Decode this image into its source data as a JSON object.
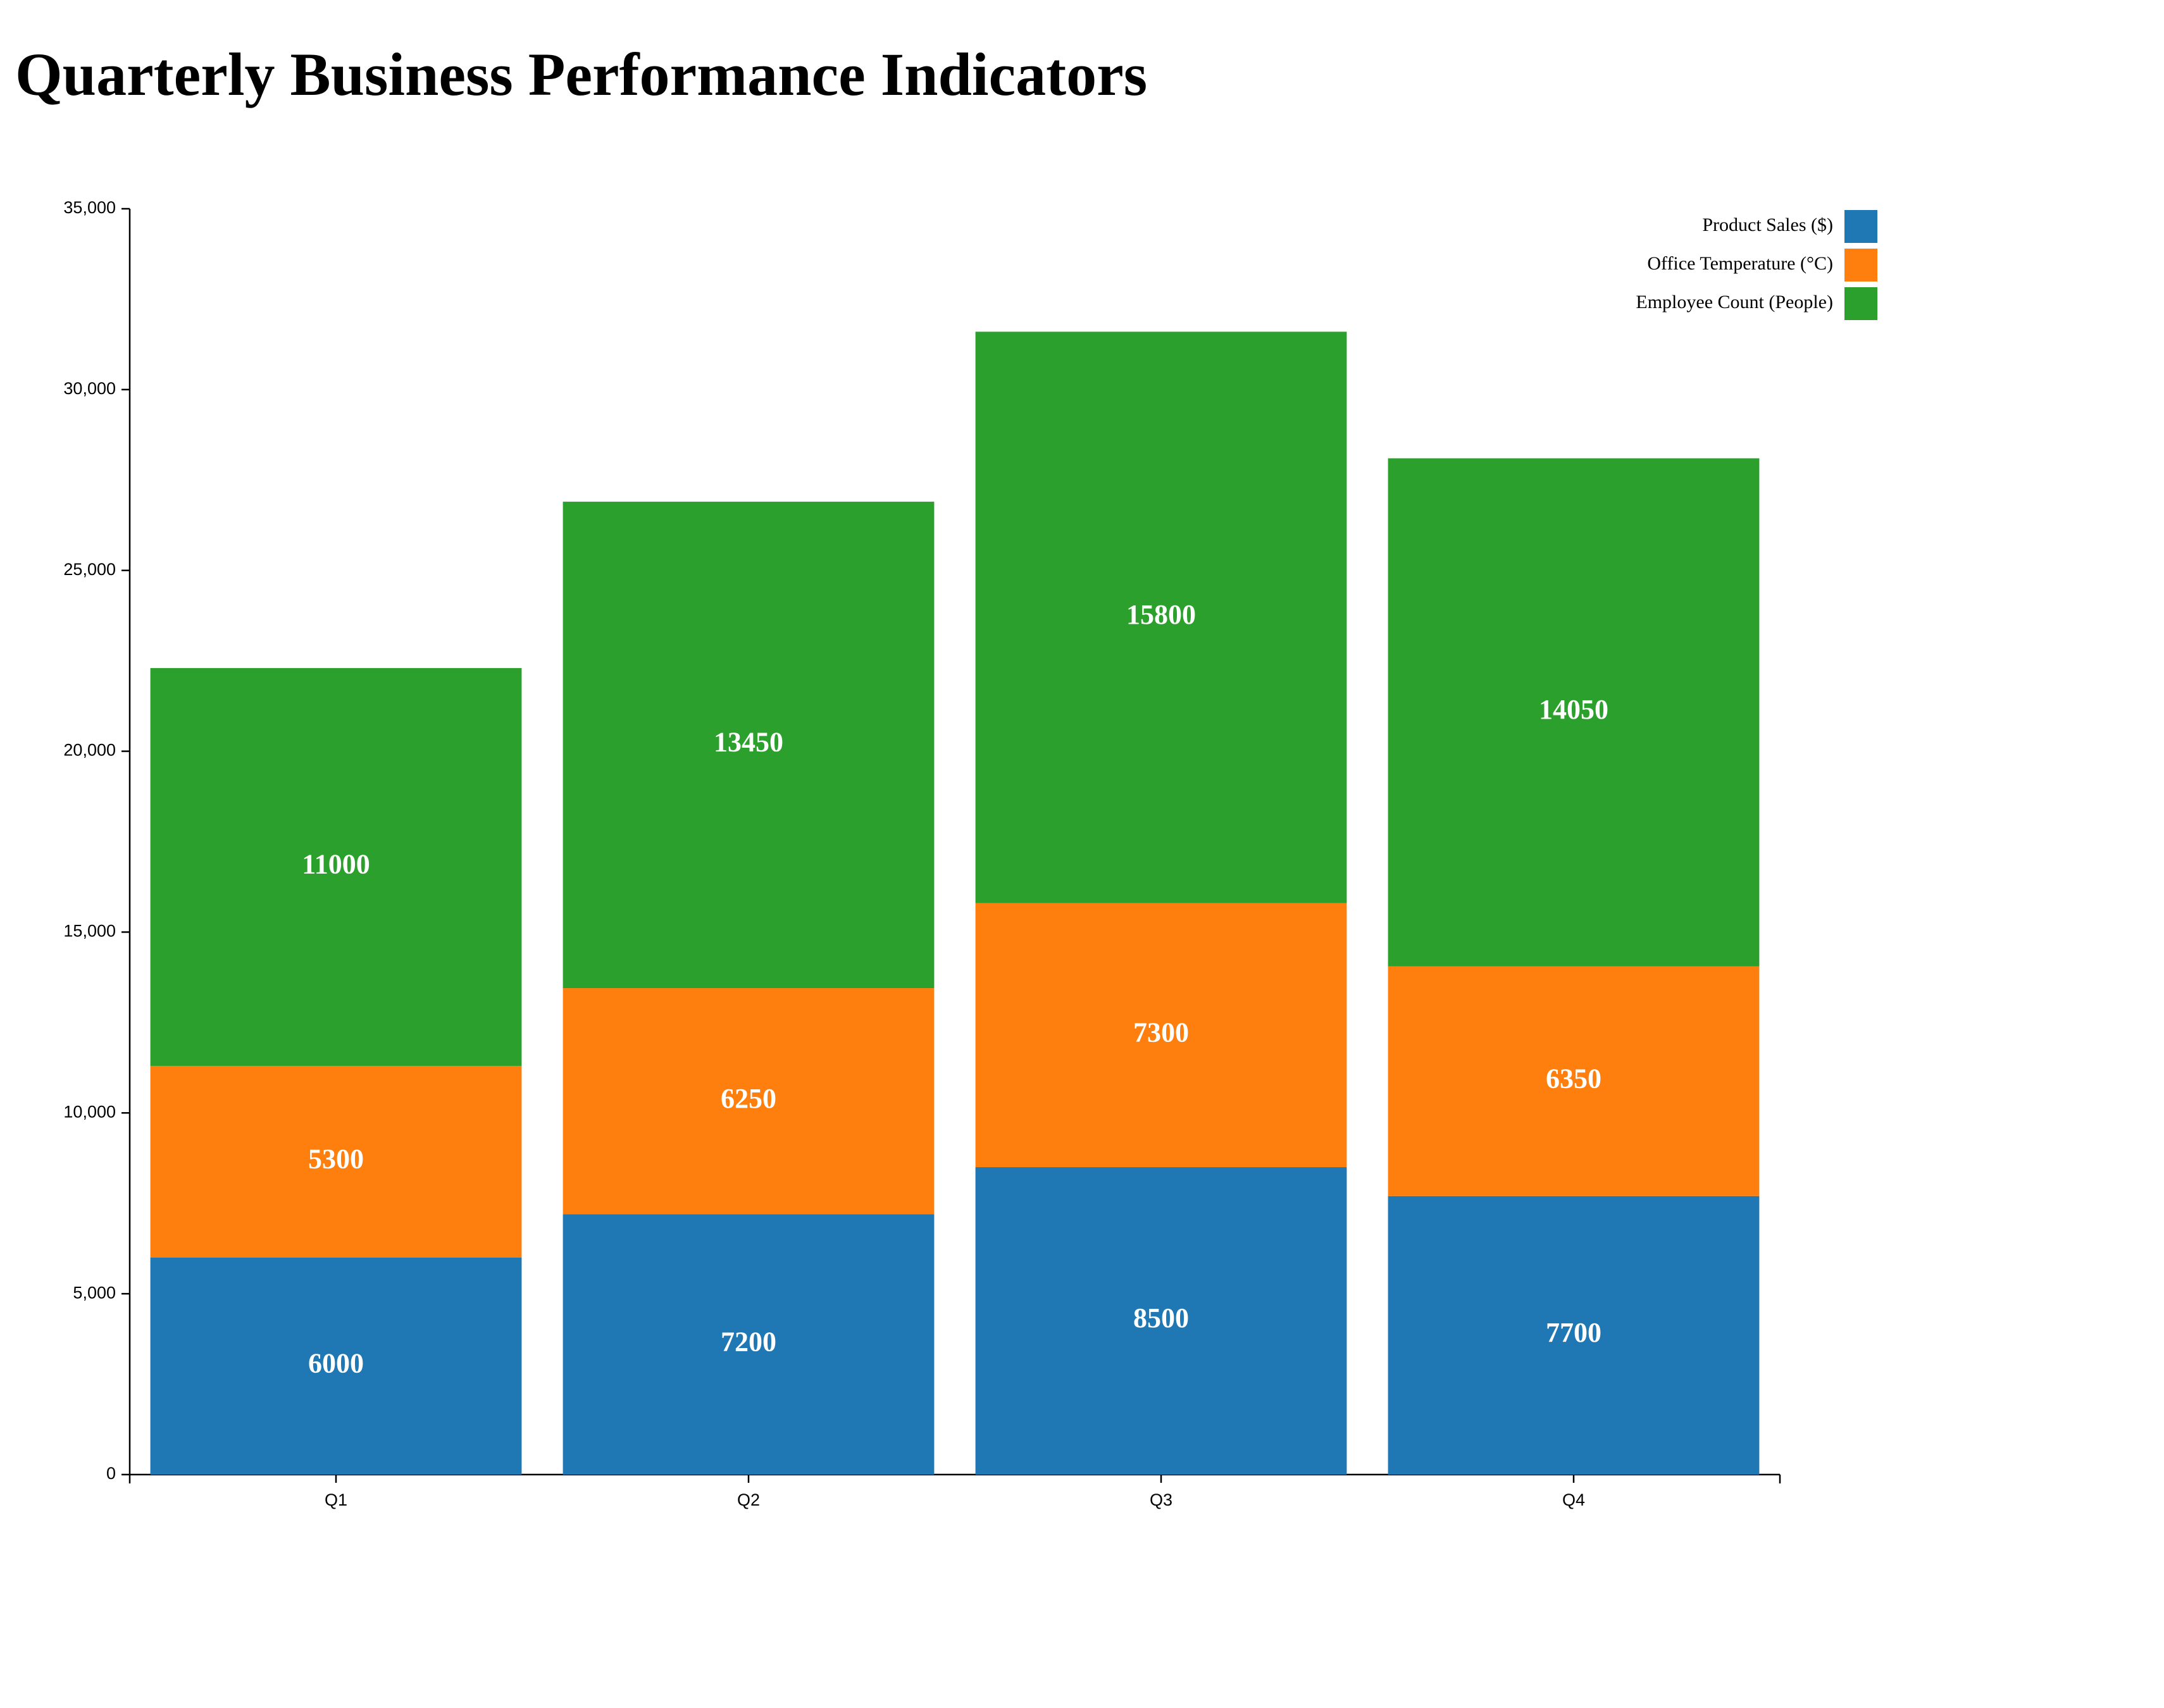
{
  "chart_data": {
    "type": "bar",
    "stacked": true,
    "title": "Quarterly Business Performance Indicators",
    "xlabel": "",
    "ylabel": "",
    "categories": [
      "Q1",
      "Q2",
      "Q3",
      "Q4"
    ],
    "series": [
      {
        "name": "Product Sales ($)",
        "color": "#1f77b4",
        "values": [
          6000,
          7200,
          8500,
          7700
        ]
      },
      {
        "name": "Office Temperature (°C)",
        "color": "#ff7f0e",
        "values": [
          5300,
          6250,
          7300,
          6350
        ]
      },
      {
        "name": "Employee Count (People)",
        "color": "#2ca02c",
        "values": [
          11000,
          13450,
          15800,
          14050
        ]
      }
    ],
    "ylim": [
      0,
      35000
    ],
    "yticks": [
      0,
      5000,
      10000,
      15000,
      20000,
      25000,
      30000,
      35000
    ],
    "ytick_labels": [
      "0",
      "5,000",
      "10,000",
      "15,000",
      "20,000",
      "25,000",
      "30,000",
      "35,000"
    ],
    "grid": false,
    "legend_position": "top-right",
    "data_labels": true
  }
}
